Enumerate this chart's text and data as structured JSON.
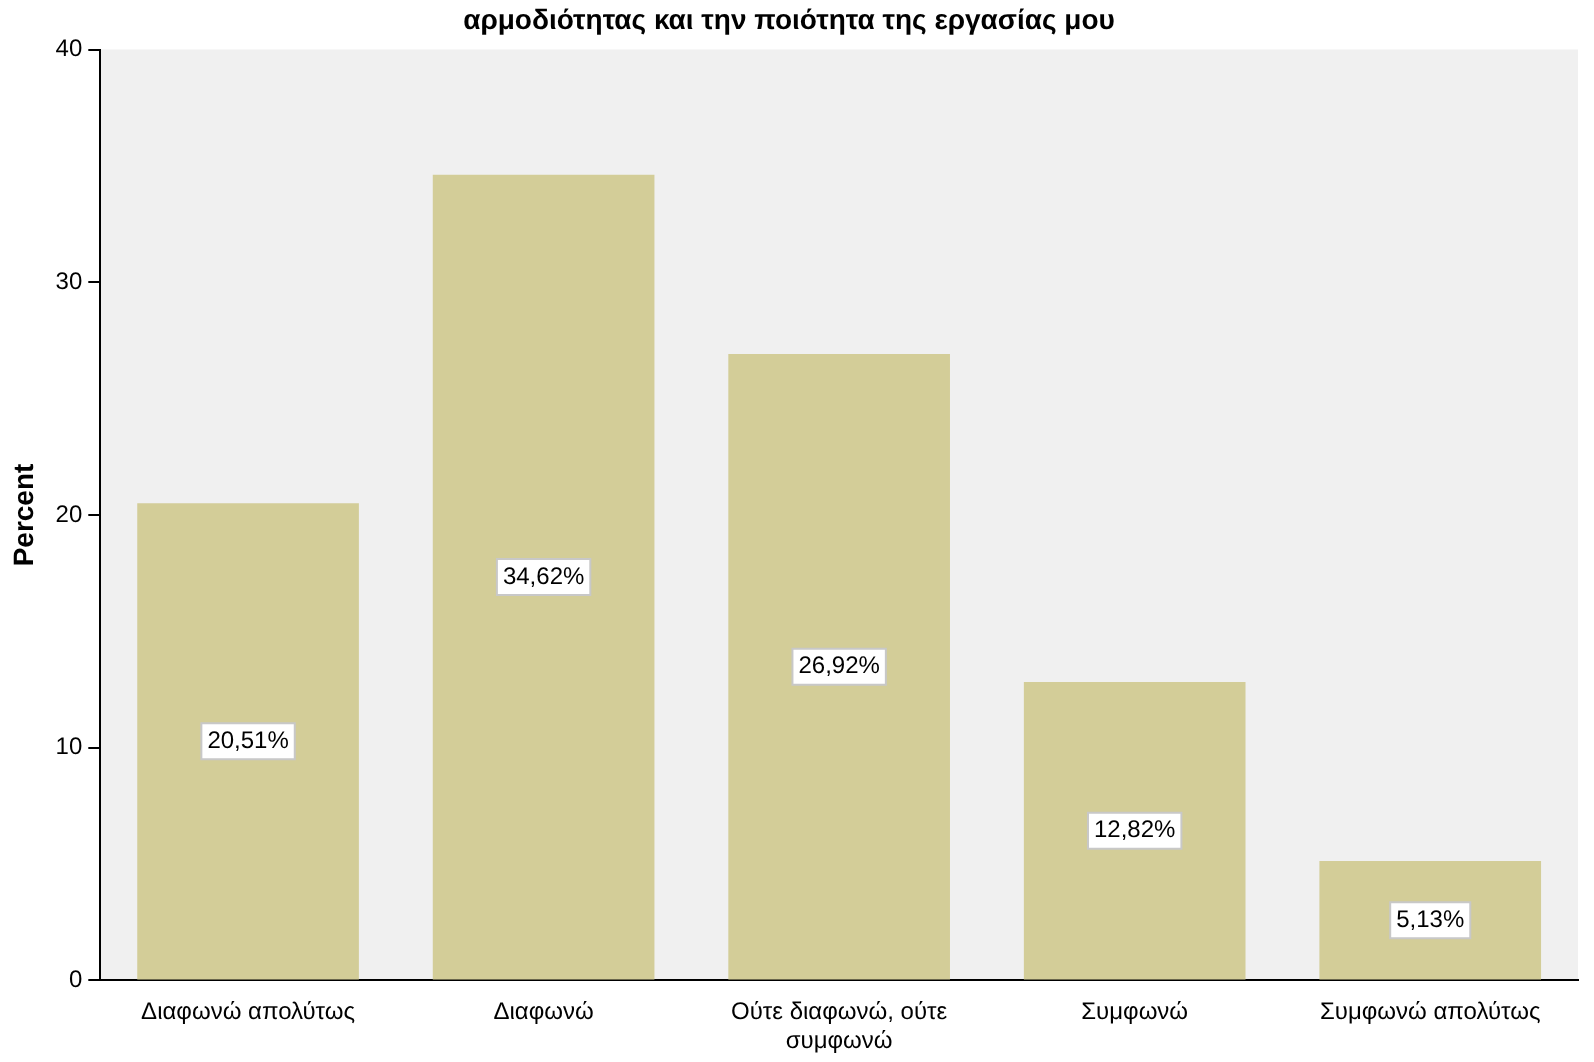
{
  "chart_data": {
    "type": "bar",
    "title": "αρμοδιότητας και την ποιότητα της εργασίας μου",
    "ylabel": "Percent",
    "categories": [
      "Διαφωνώ απολύτως",
      "Διαφωνώ",
      "Ούτε διαφωνώ, ούτε συμφωνώ",
      "Συμφωνώ",
      "Συμφωνώ απολύτως"
    ],
    "values": [
      20.51,
      34.62,
      26.92,
      12.82,
      5.13
    ],
    "value_labels": [
      "20,51%",
      "34,62%",
      "26,92%",
      "12,82%",
      "5,13%"
    ],
    "color": "#d3cd98",
    "ylim": [
      0,
      40
    ],
    "yticks": [
      0,
      10,
      20,
      30,
      40
    ],
    "grid": false,
    "legend": false
  }
}
